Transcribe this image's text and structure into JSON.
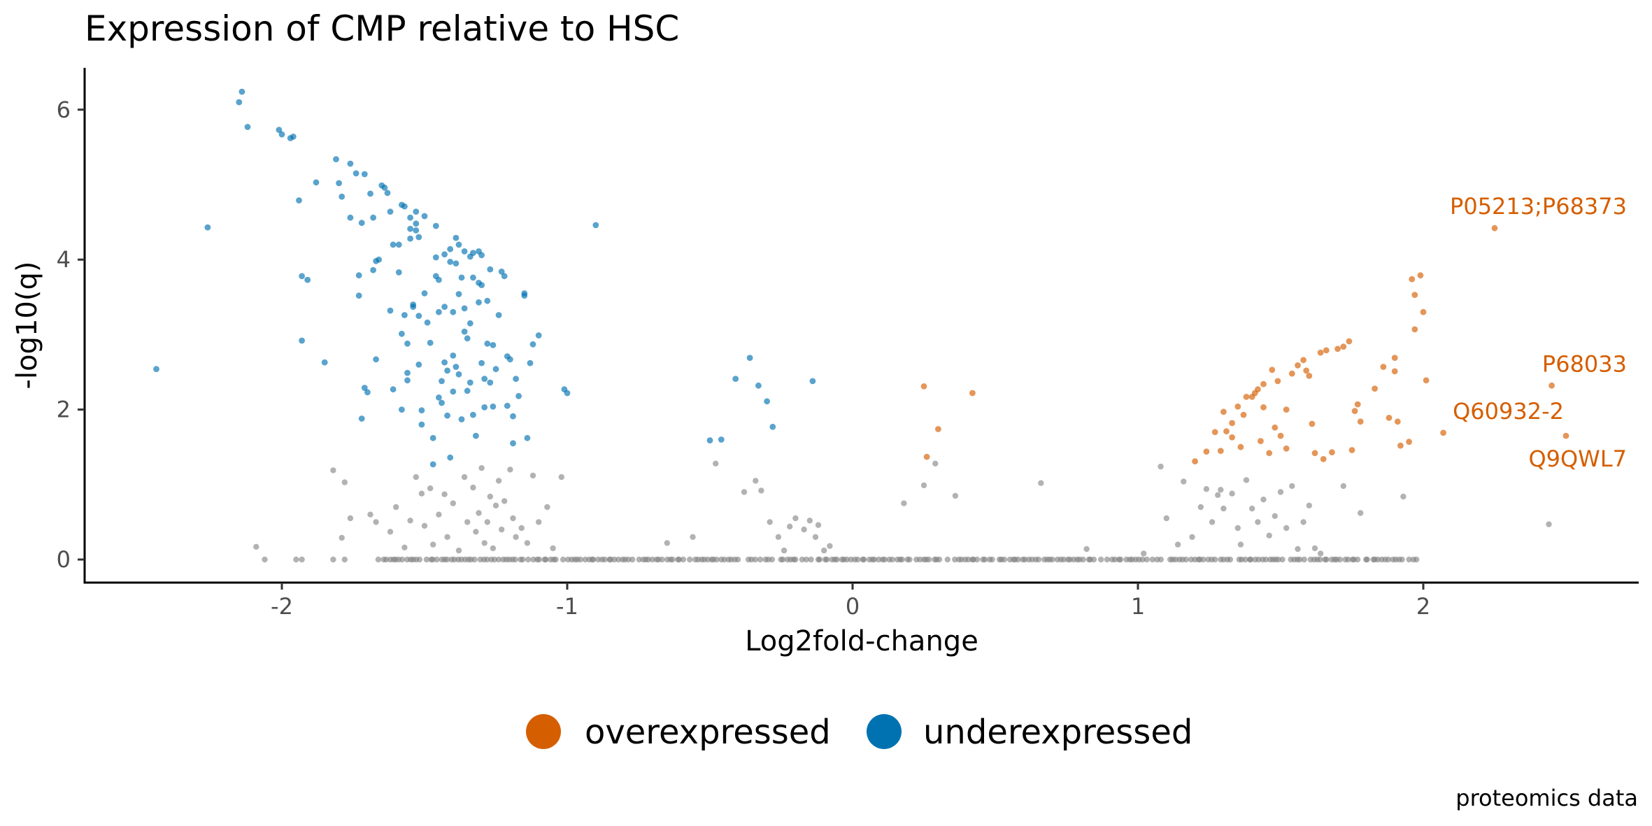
{
  "chart_data": {
    "type": "scatter",
    "title": "Expression of CMP relative to HSC",
    "xlabel": "Log2fold-change",
    "ylabel": "-log10(q)",
    "caption": "proteomics data",
    "xlim": [
      -2.68,
      2.75
    ],
    "ylim": [
      -0.3,
      6.55
    ],
    "x_ticks": [
      -2,
      -1,
      0,
      1,
      2
    ],
    "y_ticks": [
      0,
      2,
      4,
      6
    ],
    "grid": false,
    "legend_position": "bottom",
    "colors": {
      "overexpressed": "#d55e00",
      "underexpressed": "#0072b2",
      "not_significant": "#7f7f7f"
    },
    "legend": [
      {
        "label": "overexpressed",
        "color": "#d55e00"
      },
      {
        "label": "underexpressed",
        "color": "#0072b2"
      }
    ],
    "annotations": [
      {
        "text": "P05213;P68373",
        "x": 2.25,
        "y": 4.42
      },
      {
        "text": "P68033",
        "x": 2.45,
        "y": 2.32
      },
      {
        "text": "Q60932-2",
        "x": 2.07,
        "y": 1.69
      },
      {
        "text": "Q9QWL7",
        "x": 2.5,
        "y": 1.65
      }
    ],
    "series": [
      {
        "name": "underexpressed",
        "points": [
          [
            -2.44,
            2.54
          ],
          [
            -2.26,
            4.43
          ],
          [
            -2.14,
            6.24
          ],
          [
            -2.15,
            6.1
          ],
          [
            -2.12,
            5.77
          ],
          [
            -2.01,
            5.73
          ],
          [
            -2.0,
            5.67
          ],
          [
            -1.97,
            5.62
          ],
          [
            -1.96,
            5.64
          ],
          [
            -1.94,
            4.79
          ],
          [
            -1.93,
            3.78
          ],
          [
            -1.91,
            3.73
          ],
          [
            -1.93,
            2.92
          ],
          [
            -1.88,
            5.03
          ],
          [
            -1.85,
            2.63
          ],
          [
            -1.81,
            5.34
          ],
          [
            -1.8,
            5.02
          ],
          [
            -1.79,
            4.84
          ],
          [
            -1.76,
            5.28
          ],
          [
            -1.76,
            4.56
          ],
          [
            -1.74,
            5.15
          ],
          [
            -1.73,
            3.79
          ],
          [
            -1.73,
            3.52
          ],
          [
            -1.72,
            4.49
          ],
          [
            -1.71,
            5.14
          ],
          [
            -1.71,
            2.29
          ],
          [
            -1.72,
            1.88
          ],
          [
            -1.7,
            2.23
          ],
          [
            -1.69,
            4.88
          ],
          [
            -1.68,
            4.56
          ],
          [
            -1.68,
            3.86
          ],
          [
            -1.67,
            2.67
          ],
          [
            -1.67,
            3.98
          ],
          [
            -1.66,
            4.0
          ],
          [
            -1.65,
            4.99
          ],
          [
            -1.64,
            4.96
          ],
          [
            -1.63,
            4.89
          ],
          [
            -1.62,
            4.64
          ],
          [
            -1.61,
            4.2
          ],
          [
            -1.62,
            3.32
          ],
          [
            -1.61,
            2.27
          ],
          [
            -1.59,
            4.2
          ],
          [
            -1.59,
            3.83
          ],
          [
            -1.58,
            4.73
          ],
          [
            -1.58,
            3.01
          ],
          [
            -1.58,
            2.0
          ],
          [
            -1.57,
            4.71
          ],
          [
            -1.57,
            3.26
          ],
          [
            -1.56,
            2.88
          ],
          [
            -1.56,
            2.49
          ],
          [
            -1.56,
            2.39
          ],
          [
            -1.55,
            4.56
          ],
          [
            -1.55,
            4.41
          ],
          [
            -1.55,
            4.28
          ],
          [
            -1.54,
            3.4
          ],
          [
            -1.54,
            3.37
          ],
          [
            -1.53,
            4.64
          ],
          [
            -1.53,
            4.48
          ],
          [
            -1.53,
            4.39
          ],
          [
            -1.52,
            4.3
          ],
          [
            -1.52,
            3.25
          ],
          [
            -1.52,
            2.6
          ],
          [
            -1.51,
            1.99
          ],
          [
            -1.51,
            1.8
          ],
          [
            -1.5,
            4.58
          ],
          [
            -1.5,
            3.55
          ],
          [
            -1.49,
            3.16
          ],
          [
            -1.48,
            2.89
          ],
          [
            -1.47,
            1.62
          ],
          [
            -1.47,
            1.27
          ],
          [
            -1.46,
            4.45
          ],
          [
            -1.46,
            4.03
          ],
          [
            -1.46,
            3.78
          ],
          [
            -1.45,
            3.73
          ],
          [
            -1.45,
            3.3
          ],
          [
            -1.45,
            2.16
          ],
          [
            -1.44,
            2.38
          ],
          [
            -1.44,
            2.09
          ],
          [
            -1.43,
            4.07
          ],
          [
            -1.43,
            3.37
          ],
          [
            -1.43,
            2.63
          ],
          [
            -1.42,
            2.52
          ],
          [
            -1.42,
            1.92
          ],
          [
            -1.41,
            4.14
          ],
          [
            -1.41,
            3.97
          ],
          [
            -1.41,
            1.36
          ],
          [
            -1.4,
            3.3
          ],
          [
            -1.4,
            2.72
          ],
          [
            -1.4,
            2.24
          ],
          [
            -1.39,
            4.29
          ],
          [
            -1.39,
            3.95
          ],
          [
            -1.39,
            2.57
          ],
          [
            -1.38,
            4.2
          ],
          [
            -1.38,
            3.54
          ],
          [
            -1.38,
            2.47
          ],
          [
            -1.37,
            1.87
          ],
          [
            -1.37,
            3.76
          ],
          [
            -1.36,
            4.11
          ],
          [
            -1.36,
            3.35
          ],
          [
            -1.36,
            3.04
          ],
          [
            -1.35,
            2.25
          ],
          [
            -1.35,
            2.95
          ],
          [
            -1.34,
            4.04
          ],
          [
            -1.34,
            3.15
          ],
          [
            -1.34,
            2.36
          ],
          [
            -1.33,
            4.09
          ],
          [
            -1.33,
            3.76
          ],
          [
            -1.33,
            1.93
          ],
          [
            -1.32,
            1.65
          ],
          [
            -1.31,
            4.11
          ],
          [
            -1.31,
            3.69
          ],
          [
            -1.31,
            3.43
          ],
          [
            -1.3,
            4.06
          ],
          [
            -1.3,
            3.66
          ],
          [
            -1.3,
            2.62
          ],
          [
            -1.29,
            2.41
          ],
          [
            -1.29,
            2.03
          ],
          [
            -1.28,
            3.45
          ],
          [
            -1.28,
            2.88
          ],
          [
            -1.27,
            3.87
          ],
          [
            -1.27,
            2.36
          ],
          [
            -1.26,
            2.86
          ],
          [
            -1.26,
            2.04
          ],
          [
            -1.25,
            2.54
          ],
          [
            -1.24,
            3.26
          ],
          [
            -1.23,
            3.84
          ],
          [
            -1.22,
            3.78
          ],
          [
            -1.21,
            2.71
          ],
          [
            -1.21,
            2.05
          ],
          [
            -1.2,
            2.67
          ],
          [
            -1.19,
            1.91
          ],
          [
            -1.19,
            1.55
          ],
          [
            -1.18,
            2.41
          ],
          [
            -1.17,
            2.18
          ],
          [
            -1.15,
            3.55
          ],
          [
            -1.15,
            3.52
          ],
          [
            -1.14,
            1.62
          ],
          [
            -1.13,
            2.62
          ],
          [
            -1.12,
            2.87
          ],
          [
            -1.1,
            2.99
          ],
          [
            -1.01,
            2.27
          ],
          [
            -1.0,
            2.22
          ],
          [
            -0.9,
            4.46
          ],
          [
            -0.5,
            1.59
          ],
          [
            -0.46,
            1.6
          ],
          [
            -0.41,
            2.41
          ],
          [
            -0.36,
            2.69
          ],
          [
            -0.33,
            2.32
          ],
          [
            -0.3,
            2.11
          ],
          [
            -0.28,
            1.77
          ],
          [
            -0.14,
            2.38
          ]
        ]
      },
      {
        "name": "overexpressed",
        "points": [
          [
            0.25,
            2.31
          ],
          [
            0.26,
            1.37
          ],
          [
            0.3,
            1.74
          ],
          [
            0.42,
            2.22
          ],
          [
            1.2,
            1.31
          ],
          [
            1.24,
            1.44
          ],
          [
            1.27,
            1.7
          ],
          [
            1.29,
            1.45
          ],
          [
            1.31,
            1.71
          ],
          [
            1.3,
            1.97
          ],
          [
            1.33,
            1.82
          ],
          [
            1.33,
            1.63
          ],
          [
            1.35,
            2.04
          ],
          [
            1.36,
            1.5
          ],
          [
            1.37,
            1.93
          ],
          [
            1.38,
            2.17
          ],
          [
            1.4,
            2.17
          ],
          [
            1.41,
            2.22
          ],
          [
            1.42,
            2.27
          ],
          [
            1.43,
            1.58
          ],
          [
            1.44,
            2.34
          ],
          [
            1.44,
            2.03
          ],
          [
            1.46,
            1.42
          ],
          [
            1.47,
            2.53
          ],
          [
            1.48,
            1.76
          ],
          [
            1.49,
            2.38
          ],
          [
            1.5,
            1.65
          ],
          [
            1.52,
            2.0
          ],
          [
            1.52,
            1.48
          ],
          [
            1.54,
            2.48
          ],
          [
            1.56,
            2.59
          ],
          [
            1.58,
            2.66
          ],
          [
            1.59,
            2.52
          ],
          [
            1.6,
            2.45
          ],
          [
            1.61,
            1.81
          ],
          [
            1.62,
            1.42
          ],
          [
            1.64,
            2.76
          ],
          [
            1.65,
            1.34
          ],
          [
            1.66,
            2.79
          ],
          [
            1.68,
            1.43
          ],
          [
            1.7,
            2.81
          ],
          [
            1.72,
            2.84
          ],
          [
            1.74,
            2.91
          ],
          [
            1.75,
            1.46
          ],
          [
            1.76,
            1.98
          ],
          [
            1.77,
            2.07
          ],
          [
            1.78,
            1.84
          ],
          [
            1.83,
            2.28
          ],
          [
            1.86,
            2.57
          ],
          [
            1.88,
            1.89
          ],
          [
            1.9,
            2.51
          ],
          [
            1.9,
            2.69
          ],
          [
            1.91,
            1.84
          ],
          [
            1.92,
            1.52
          ],
          [
            1.95,
            1.57
          ],
          [
            1.96,
            3.74
          ],
          [
            1.97,
            3.07
          ],
          [
            1.97,
            3.53
          ],
          [
            1.99,
            3.79
          ],
          [
            2.0,
            3.3
          ],
          [
            2.01,
            2.39
          ],
          [
            2.07,
            1.69
          ],
          [
            2.25,
            4.42
          ],
          [
            2.45,
            2.32
          ],
          [
            2.5,
            1.65
          ]
        ]
      },
      {
        "name": "not significant",
        "points": []
      }
    ]
  }
}
